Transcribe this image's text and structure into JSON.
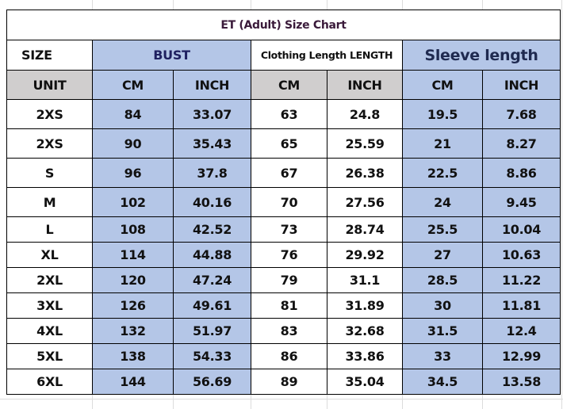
{
  "title": "ET (Adult) Size Chart",
  "headers": {
    "size": "SIZE",
    "bust": "BUST",
    "clothing_length": "Clothing Length LENGTH",
    "sleeve_length": "Sleeve length"
  },
  "units": [
    "UNIT",
    "CM",
    "INCH",
    "CM",
    "INCH",
    "CM",
    "INCH"
  ],
  "rows": [
    [
      "2XS",
      "84",
      "33.07",
      "63",
      "24.8",
      "19.5",
      "7.68"
    ],
    [
      "2XS",
      "90",
      "35.43",
      "65",
      "25.59",
      "21",
      "8.27"
    ],
    [
      "S",
      "96",
      "37.8",
      "67",
      "26.38",
      "22.5",
      "8.86"
    ],
    [
      "M",
      "102",
      "40.16",
      "70",
      "27.56",
      "24",
      "9.45"
    ],
    [
      "L",
      "108",
      "42.52",
      "73",
      "28.74",
      "25.5",
      "10.04"
    ],
    [
      "XL",
      "114",
      "44.88",
      "76",
      "29.92",
      "27",
      "10.63"
    ],
    [
      "2XL",
      "120",
      "47.24",
      "79",
      "31.1",
      "28.5",
      "11.22"
    ],
    [
      "3XL",
      "126",
      "49.61",
      "81",
      "31.89",
      "30",
      "11.81"
    ],
    [
      "4XL",
      "132",
      "51.97",
      "83",
      "32.68",
      "31.5",
      "12.4"
    ],
    [
      "5XL",
      "138",
      "54.33",
      "86",
      "33.86",
      "33",
      "12.99"
    ],
    [
      "6XL",
      "144",
      "56.69",
      "89",
      "35.04",
      "34.5",
      "13.58"
    ]
  ],
  "colors": {
    "blue_fill": "#b4c6e7",
    "gray_fill": "#d0cece"
  }
}
